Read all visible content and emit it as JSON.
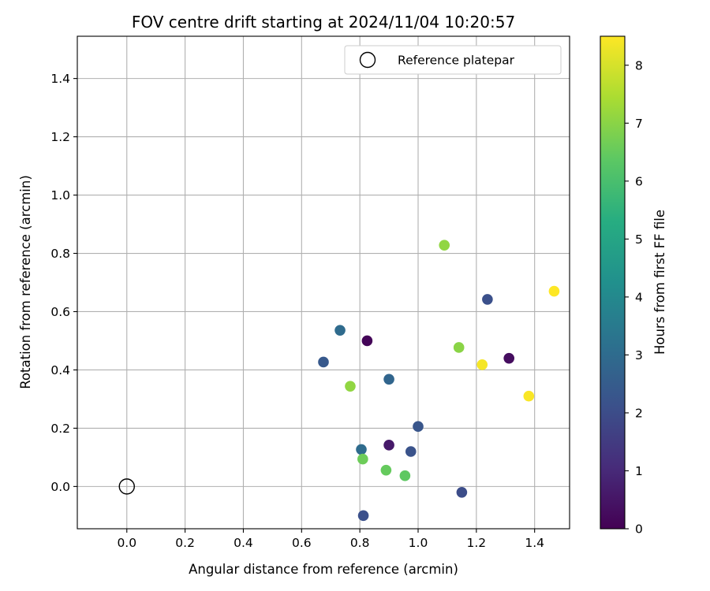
{
  "chart_data": {
    "type": "scatter",
    "title": "FOV centre drift starting at 2024/11/04 10:20:57",
    "xlabel": "Angular distance from reference (arcmin)",
    "ylabel": "Rotation from reference (arcmin)",
    "xlim": [
      -0.17,
      1.52
    ],
    "ylim": [
      -0.145,
      1.545
    ],
    "xticks": [
      0.0,
      0.2,
      0.4,
      0.6,
      0.8,
      1.0,
      1.2,
      1.4
    ],
    "xtick_labels": [
      "0.0",
      "0.2",
      "0.4",
      "0.6",
      "0.8",
      "1.0",
      "1.2",
      "1.4"
    ],
    "yticks": [
      0.0,
      0.2,
      0.4,
      0.6,
      0.8,
      1.0,
      1.2,
      1.4
    ],
    "ytick_labels": [
      "0.0",
      "0.2",
      "0.4",
      "0.6",
      "0.8",
      "1.0",
      "1.2",
      "1.4"
    ],
    "grid": true,
    "legend": {
      "placement": "top-right",
      "entries": [
        "Reference platepar"
      ]
    },
    "reference_point": {
      "x": 0.0,
      "y": 0.0
    },
    "colorbar": {
      "label": "Hours from first FF file",
      "range": [
        0,
        8.5
      ],
      "ticks": [
        0,
        1,
        2,
        3,
        4,
        5,
        6,
        7,
        8
      ],
      "tick_labels": [
        "0",
        "1",
        "2",
        "3",
        "4",
        "5",
        "6",
        "7",
        "8"
      ],
      "colormap": "viridis"
    },
    "points": [
      {
        "x": 0.825,
        "y": 0.5,
        "hours": 0.1
      },
      {
        "x": 1.312,
        "y": 0.44,
        "hours": 0.3
      },
      {
        "x": 0.9,
        "y": 0.142,
        "hours": 0.6
      },
      {
        "x": 1.15,
        "y": -0.02,
        "hours": 2.0
      },
      {
        "x": 0.812,
        "y": -0.1,
        "hours": 2.1
      },
      {
        "x": 1.238,
        "y": 0.642,
        "hours": 2.1
      },
      {
        "x": 0.975,
        "y": 0.12,
        "hours": 2.2
      },
      {
        "x": 1.0,
        "y": 0.206,
        "hours": 2.3
      },
      {
        "x": 0.675,
        "y": 0.427,
        "hours": 2.4
      },
      {
        "x": 0.9,
        "y": 0.368,
        "hours": 2.8
      },
      {
        "x": 0.732,
        "y": 0.536,
        "hours": 3.0
      },
      {
        "x": 0.805,
        "y": 0.127,
        "hours": 3.0
      },
      {
        "x": 0.955,
        "y": 0.037,
        "hours": 6.4
      },
      {
        "x": 0.89,
        "y": 0.056,
        "hours": 6.5
      },
      {
        "x": 0.81,
        "y": 0.094,
        "hours": 6.6
      },
      {
        "x": 1.14,
        "y": 0.477,
        "hours": 7.0
      },
      {
        "x": 0.767,
        "y": 0.344,
        "hours": 7.1
      },
      {
        "x": 1.09,
        "y": 0.828,
        "hours": 7.1
      },
      {
        "x": 1.22,
        "y": 0.418,
        "hours": 8.4
      },
      {
        "x": 1.38,
        "y": 0.31,
        "hours": 8.45
      },
      {
        "x": 1.467,
        "y": 0.67,
        "hours": 8.5
      }
    ]
  }
}
